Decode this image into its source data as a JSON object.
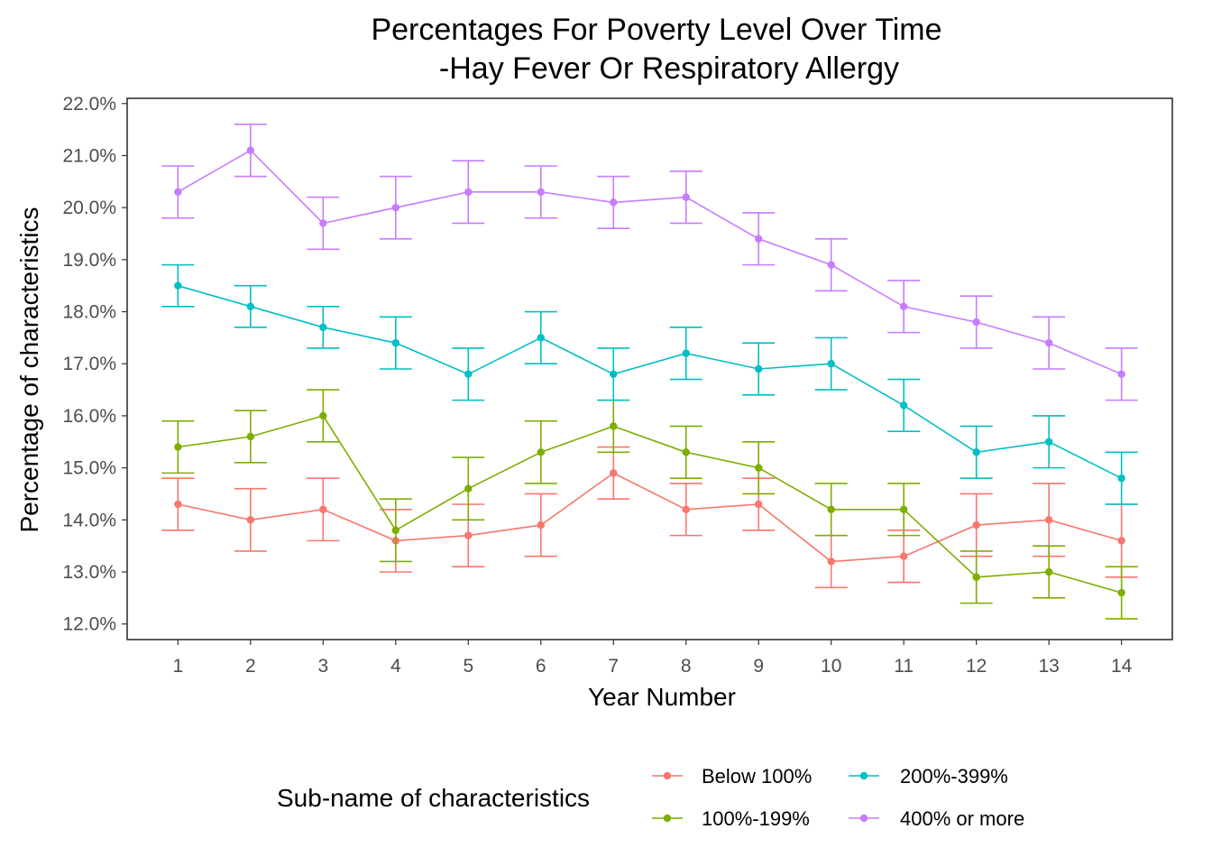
{
  "chart_data": {
    "type": "line",
    "title_lines": [
      "Percentages For Poverty Level Over Time",
      "-Hay Fever Or Respiratory Allergy"
    ],
    "xlabel": "Year Number",
    "ylabel": "Percentage of characteristics",
    "x": [
      1,
      2,
      3,
      4,
      5,
      6,
      7,
      8,
      9,
      10,
      11,
      12,
      13,
      14
    ],
    "x_tick_labels": [
      "1",
      "2",
      "3",
      "4",
      "5",
      "6",
      "7",
      "8",
      "9",
      "10",
      "11",
      "12",
      "13",
      "14"
    ],
    "xlim": [
      0.3,
      14.7
    ],
    "ylim": [
      11.7,
      22.1
    ],
    "y_ticks": [
      12,
      13,
      14,
      15,
      16,
      17,
      18,
      19,
      20,
      21,
      22
    ],
    "y_tick_labels": [
      "12.0%",
      "13.0%",
      "14.0%",
      "15.0%",
      "16.0%",
      "17.0%",
      "18.0%",
      "19.0%",
      "20.0%",
      "21.0%",
      "22.0%"
    ],
    "grid": false,
    "error_bars": true,
    "legend": {
      "title": "Sub-name of characteristics",
      "position": "bottom",
      "entries": [
        "Below 100%",
        "200%-399%",
        "100%-199%",
        "400% or more"
      ]
    },
    "series": [
      {
        "name": "Below 100%",
        "color": "#F8766D",
        "values": [
          14.3,
          14.0,
          14.2,
          13.6,
          13.7,
          13.9,
          14.9,
          14.2,
          14.3,
          13.2,
          13.3,
          13.9,
          14.0,
          13.6
        ],
        "lower": [
          13.8,
          13.4,
          13.6,
          13.0,
          13.1,
          13.3,
          14.4,
          13.7,
          13.8,
          12.7,
          12.8,
          13.3,
          13.3,
          12.9
        ],
        "upper": [
          14.8,
          14.6,
          14.8,
          14.2,
          14.3,
          14.5,
          15.4,
          14.7,
          14.8,
          13.7,
          13.8,
          14.5,
          14.7,
          14.3
        ]
      },
      {
        "name": "100%-199%",
        "color": "#7CAE00",
        "values": [
          15.4,
          15.6,
          16.0,
          13.8,
          14.6,
          15.3,
          15.8,
          15.3,
          15.0,
          14.2,
          14.2,
          12.9,
          13.0,
          12.6
        ],
        "lower": [
          14.9,
          15.1,
          15.5,
          13.2,
          14.0,
          14.7,
          15.3,
          14.8,
          14.5,
          13.7,
          13.7,
          12.4,
          12.5,
          12.1
        ],
        "upper": [
          15.9,
          16.1,
          16.5,
          14.4,
          15.2,
          15.9,
          16.3,
          15.8,
          15.5,
          14.7,
          14.7,
          13.4,
          13.5,
          13.1
        ]
      },
      {
        "name": "200%-399%",
        "color": "#00BFC4",
        "values": [
          18.5,
          18.1,
          17.7,
          17.4,
          16.8,
          17.5,
          16.8,
          17.2,
          16.9,
          17.0,
          16.2,
          15.3,
          15.5,
          14.8
        ],
        "lower": [
          18.1,
          17.7,
          17.3,
          16.9,
          16.3,
          17.0,
          16.3,
          16.7,
          16.4,
          16.5,
          15.7,
          14.8,
          15.0,
          14.3
        ],
        "upper": [
          18.9,
          18.5,
          18.1,
          17.9,
          17.3,
          18.0,
          17.3,
          17.7,
          17.4,
          17.5,
          16.7,
          15.8,
          16.0,
          15.3
        ]
      },
      {
        "name": "400% or more",
        "color": "#C77CFF",
        "values": [
          20.3,
          21.1,
          19.7,
          20.0,
          20.3,
          20.3,
          20.1,
          20.2,
          19.4,
          18.9,
          18.1,
          17.8,
          17.4,
          16.8
        ],
        "lower": [
          19.8,
          20.6,
          19.2,
          19.4,
          19.7,
          19.8,
          19.6,
          19.7,
          18.9,
          18.4,
          17.6,
          17.3,
          16.9,
          16.3
        ],
        "upper": [
          20.8,
          21.6,
          20.2,
          20.6,
          20.9,
          20.8,
          20.6,
          20.7,
          19.9,
          19.4,
          18.6,
          18.3,
          17.9,
          17.3
        ]
      }
    ]
  }
}
